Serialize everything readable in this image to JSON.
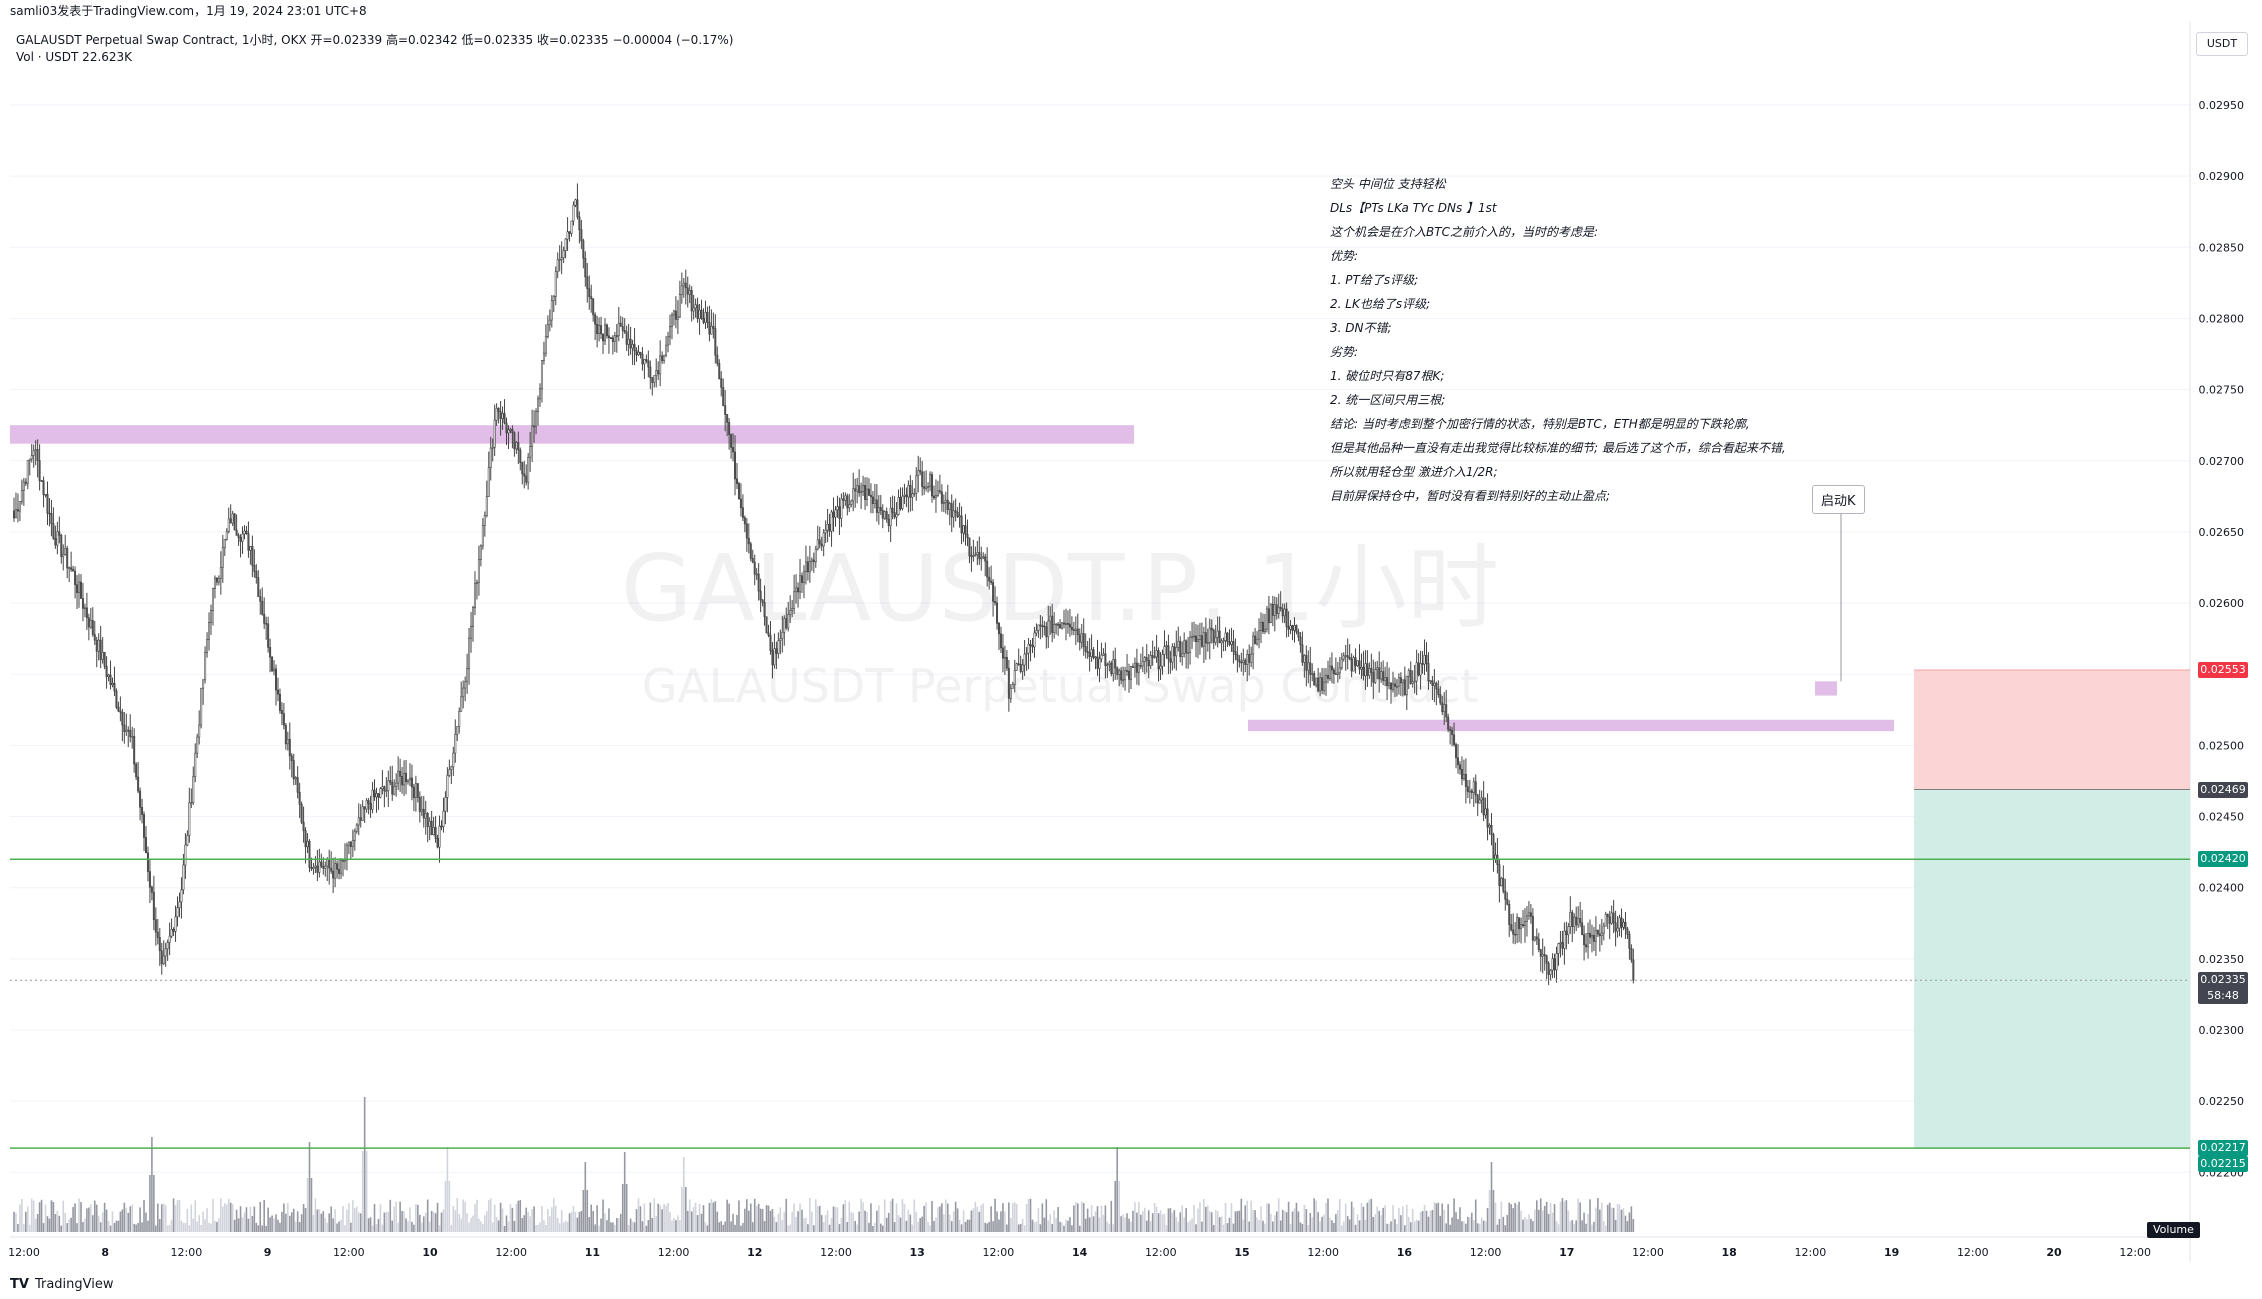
{
  "topbar": {
    "text": "samli03发表于TradingView.com，1月 19, 2024 23:01 UTC+8"
  },
  "legend": {
    "line1": "GALAUSDT Perpetual Swap Contract, 1小时, OKX  开=0.02339  高=0.02342  低=0.02335  收=0.02335  −0.00004 (−0.17%)",
    "line2": "Vol · USDT  22.623K"
  },
  "currency": "USDT",
  "watermark": {
    "big": "GALAUSDT.P, 1小时",
    "small": "GALAUSDT Perpetual Swap Contract"
  },
  "notes": [
    "空头 中间位 支持轻松",
    "DLs【PTs LKa TYc DNs 】1st",
    "这个机会是在介入BTC之前介入的，当时的考虑是:",
    "优势:",
    "1. PT给了s评级;",
    "2. LK也给了s评级;",
    "3. DN不错;",
    "劣势:",
    "1. 破位时只有87根K;",
    "2. 统一区间只用三根;",
    "结论:  当时考虑到整个加密行情的状态，特别是BTC，ETH都是明显的下跌轮廓,",
    "但是其他品种一直没有走出我觉得比较标准的细节;  最后选了这个币，综合看起来不错,",
    "所以就用轻仓型 激进介入1/2R;",
    "目前屏保持仓中，暂时没有看到特别好的主动止盈点;"
  ],
  "launch_label": "启动K",
  "footer": {
    "brand": "TradingView"
  },
  "volume_badge": "Volume",
  "colors": {
    "up": "#ffffff",
    "down": "#555555",
    "candle_border": "#444444",
    "zone": "#e1bee7",
    "stop": "#fbd5d5",
    "target": "#d1ede6",
    "hline": "#4caf50",
    "red_tag": "#f23645",
    "green_tag": "#089981",
    "dark_tag": "#434651"
  },
  "chart_data": {
    "type": "candlestick",
    "title": "GALAUSDT Perpetual Swap Contract, 1小时, OKX",
    "ylim": [
      0.0221,
      0.03
    ],
    "y_ticks": [
      "0.02950",
      "0.02900",
      "0.02850",
      "0.02800",
      "0.02750",
      "0.02700",
      "0.02650",
      "0.02600",
      "0.02550",
      "0.02500",
      "0.02450",
      "0.02400",
      "0.02350",
      "0.02300",
      "0.02250",
      "0.02200"
    ],
    "x_ticks": [
      "12:00",
      "8",
      "12:00",
      "9",
      "12:00",
      "10",
      "12:00",
      "11",
      "12:00",
      "12",
      "12:00",
      "13",
      "12:00",
      "14",
      "12:00",
      "15",
      "12:00",
      "16",
      "12:00",
      "17",
      "12:00",
      "18",
      "12:00",
      "19",
      "12:00",
      "20",
      "12:00"
    ],
    "x_tick_bold": [
      false,
      true,
      false,
      true,
      false,
      true,
      false,
      true,
      false,
      true,
      false,
      true,
      false,
      true,
      false,
      true,
      false,
      true,
      false,
      true,
      false,
      true,
      false,
      true,
      false,
      true,
      false
    ],
    "price_levels": {
      "stop": "0.02553",
      "entry": "0.02469",
      "line_1": "0.02420",
      "current": "0.02335",
      "countdown": "58:48",
      "target": "0.02217",
      "target_2": "0.02215"
    },
    "keyframes": [
      [
        0,
        0.0266
      ],
      [
        10,
        0.0271
      ],
      [
        20,
        0.0265
      ],
      [
        30,
        0.0262
      ],
      [
        45,
        0.0256
      ],
      [
        60,
        0.025
      ],
      [
        75,
        0.0234
      ],
      [
        85,
        0.024
      ],
      [
        100,
        0.026
      ],
      [
        110,
        0.0266
      ],
      [
        120,
        0.0264
      ],
      [
        135,
        0.0253
      ],
      [
        150,
        0.0242
      ],
      [
        165,
        0.0241
      ],
      [
        180,
        0.0246
      ],
      [
        200,
        0.0248
      ],
      [
        215,
        0.0243
      ],
      [
        230,
        0.0256
      ],
      [
        245,
        0.0274
      ],
      [
        260,
        0.0269
      ],
      [
        275,
        0.0283
      ],
      [
        285,
        0.0288
      ],
      [
        295,
        0.0279
      ],
      [
        310,
        0.0279
      ],
      [
        325,
        0.0276
      ],
      [
        340,
        0.0282
      ],
      [
        355,
        0.0279
      ],
      [
        365,
        0.027
      ],
      [
        375,
        0.0263
      ],
      [
        385,
        0.0256
      ],
      [
        400,
        0.0262
      ],
      [
        415,
        0.0266
      ],
      [
        430,
        0.0268
      ],
      [
        445,
        0.0266
      ],
      [
        460,
        0.0269
      ],
      [
        475,
        0.0267
      ],
      [
        485,
        0.0264
      ],
      [
        495,
        0.0262
      ],
      [
        505,
        0.0254
      ],
      [
        520,
        0.0258
      ],
      [
        535,
        0.0259
      ],
      [
        550,
        0.0256
      ],
      [
        565,
        0.0255
      ],
      [
        580,
        0.0256
      ],
      [
        595,
        0.0257
      ],
      [
        610,
        0.0258
      ],
      [
        625,
        0.0256
      ],
      [
        640,
        0.026
      ],
      [
        650,
        0.0258
      ],
      [
        660,
        0.0254
      ],
      [
        675,
        0.0256
      ],
      [
        690,
        0.0255
      ],
      [
        705,
        0.0254
      ],
      [
        715,
        0.0256
      ],
      [
        725,
        0.0253
      ],
      [
        735,
        0.0248
      ],
      [
        745,
        0.0246
      ],
      [
        752,
        0.0242
      ],
      [
        760,
        0.0237
      ],
      [
        768,
        0.0238
      ],
      [
        780,
        0.0234
      ],
      [
        790,
        0.0238
      ],
      [
        800,
        0.0236
      ],
      [
        810,
        0.0238
      ],
      [
        818,
        0.0237
      ],
      [
        822,
        0.02335
      ]
    ],
    "volume_peaks": [
      [
        20,
        30
      ],
      [
        70,
        95
      ],
      [
        150,
        90
      ],
      [
        178,
        135
      ],
      [
        220,
        85
      ],
      [
        290,
        70
      ],
      [
        310,
        80
      ],
      [
        340,
        75
      ],
      [
        560,
        85
      ],
      [
        750,
        70
      ]
    ]
  }
}
